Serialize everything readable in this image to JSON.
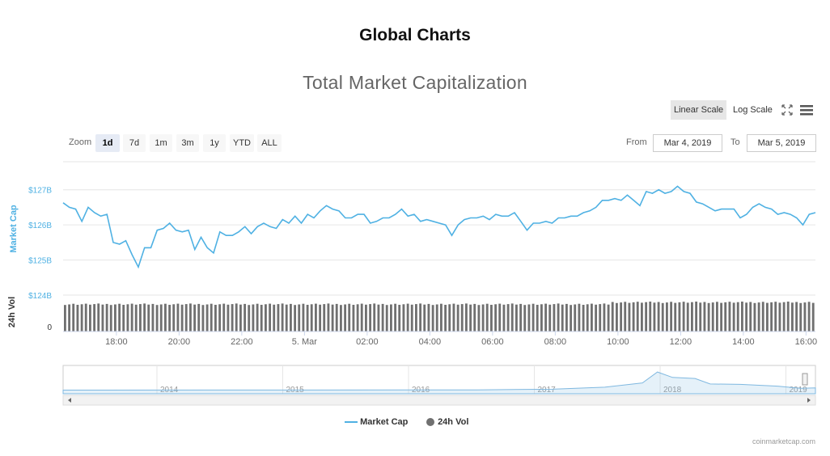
{
  "page": {
    "title": "Global Charts"
  },
  "toolbar": {
    "scale_buttons": [
      "Linear Scale",
      "Log Scale"
    ],
    "active_scale": "Linear Scale",
    "zoom_label": "Zoom",
    "zoom_buttons": [
      "1d",
      "7d",
      "1m",
      "3m",
      "1y",
      "YTD",
      "ALL"
    ],
    "active_zoom": "1d",
    "from_label": "From",
    "from_value": "Mar 4, 2019",
    "to_label": "To",
    "to_value": "Mar 5, 2019",
    "icons": [
      "fullscreen-icon",
      "menu-icon"
    ]
  },
  "chart_data": {
    "type": "line",
    "title": "Total Market Capitalization",
    "ylabel": "Market Cap",
    "ylabel2": "24h Vol",
    "y_ticks": [
      "$127B",
      "$126B",
      "$125B",
      "$124B"
    ],
    "ylim": [
      124,
      127.8
    ],
    "vol_ticks": [
      "0"
    ],
    "x_tick_labels": [
      "18:00",
      "20:00",
      "22:00",
      "5. Mar",
      "02:00",
      "04:00",
      "06:00",
      "08:00",
      "10:00",
      "12:00",
      "14:00",
      "16:00"
    ],
    "x_tick_hours": [
      18,
      20,
      22,
      24,
      26,
      28,
      30,
      32,
      34,
      36,
      38,
      40
    ],
    "x_start_hour": 16.3,
    "x_end_hour": 40.3,
    "colors": {
      "market_cap": "#4fb1e3",
      "volume": "#707070",
      "navigator": "#7fb8e0"
    },
    "series": [
      {
        "name": "Market Cap",
        "x": [
          16.3,
          16.5,
          16.7,
          16.9,
          17.1,
          17.3,
          17.5,
          17.7,
          17.9,
          18.1,
          18.3,
          18.5,
          18.7,
          18.9,
          19.1,
          19.3,
          19.5,
          19.7,
          19.9,
          20.1,
          20.3,
          20.5,
          20.7,
          20.9,
          21.1,
          21.3,
          21.5,
          21.7,
          21.9,
          22.1,
          22.3,
          22.5,
          22.7,
          22.9,
          23.1,
          23.3,
          23.5,
          23.7,
          23.9,
          24.1,
          24.3,
          24.5,
          24.7,
          24.9,
          25.1,
          25.3,
          25.5,
          25.7,
          25.9,
          26.1,
          26.3,
          26.5,
          26.7,
          26.9,
          27.1,
          27.3,
          27.5,
          27.7,
          27.9,
          28.1,
          28.3,
          28.5,
          28.7,
          28.9,
          29.1,
          29.3,
          29.5,
          29.7,
          29.9,
          30.1,
          30.3,
          30.5,
          30.7,
          30.9,
          31.1,
          31.3,
          31.5,
          31.7,
          31.9,
          32.1,
          32.3,
          32.5,
          32.7,
          32.9,
          33.1,
          33.3,
          33.5,
          33.7,
          33.9,
          34.1,
          34.3,
          34.5,
          34.7,
          34.9,
          35.1,
          35.3,
          35.5,
          35.7,
          35.9,
          36.1,
          36.3,
          36.5,
          36.7,
          36.9,
          37.1,
          37.3,
          37.5,
          37.7,
          37.9,
          38.1,
          38.3,
          38.5,
          38.7,
          38.9,
          39.1,
          39.3,
          39.5,
          39.7,
          39.9,
          40.1,
          40.3
        ],
        "values": [
          126.63,
          126.5,
          126.45,
          126.1,
          126.5,
          126.35,
          126.25,
          126.3,
          125.5,
          125.45,
          125.55,
          125.15,
          124.8,
          125.35,
          125.35,
          125.85,
          125.9,
          126.05,
          125.85,
          125.8,
          125.85,
          125.3,
          125.65,
          125.35,
          125.2,
          125.8,
          125.7,
          125.7,
          125.8,
          125.95,
          125.75,
          125.95,
          126.05,
          125.95,
          125.9,
          126.15,
          126.05,
          126.25,
          126.05,
          126.3,
          126.2,
          126.4,
          126.55,
          126.45,
          126.4,
          126.2,
          126.2,
          126.3,
          126.3,
          126.05,
          126.1,
          126.2,
          126.2,
          126.3,
          126.45,
          126.25,
          126.3,
          126.1,
          126.15,
          126.1,
          126.05,
          126.0,
          125.7,
          126.0,
          126.15,
          126.2,
          126.2,
          126.25,
          126.15,
          126.3,
          126.25,
          126.25,
          126.35,
          126.1,
          125.85,
          126.05,
          126.05,
          126.1,
          126.05,
          126.2,
          126.2,
          126.25,
          126.25,
          126.35,
          126.4,
          126.5,
          126.7,
          126.7,
          126.75,
          126.7,
          126.85,
          126.7,
          126.55,
          126.95,
          126.9,
          127.0,
          126.9,
          126.95,
          127.1,
          126.95,
          126.9,
          126.65,
          126.6,
          126.5,
          126.4,
          126.45,
          126.45,
          126.45,
          126.2,
          126.3,
          126.5,
          126.6,
          126.5,
          126.45,
          126.3,
          126.35,
          126.3,
          126.2,
          126.0,
          126.3,
          126.35
        ],
        "note_values": "realistic intraday fluctuation between roughly $124.8B and $127.1B"
      },
      {
        "name": "24h Vol"
      }
    ],
    "navigator_labels": [
      "2014",
      "2015",
      "2016",
      "2017",
      "2018",
      "2019"
    ]
  },
  "legend": {
    "items": [
      "Market Cap",
      "24h Vol"
    ]
  },
  "credit": "coinmarketcap.com"
}
